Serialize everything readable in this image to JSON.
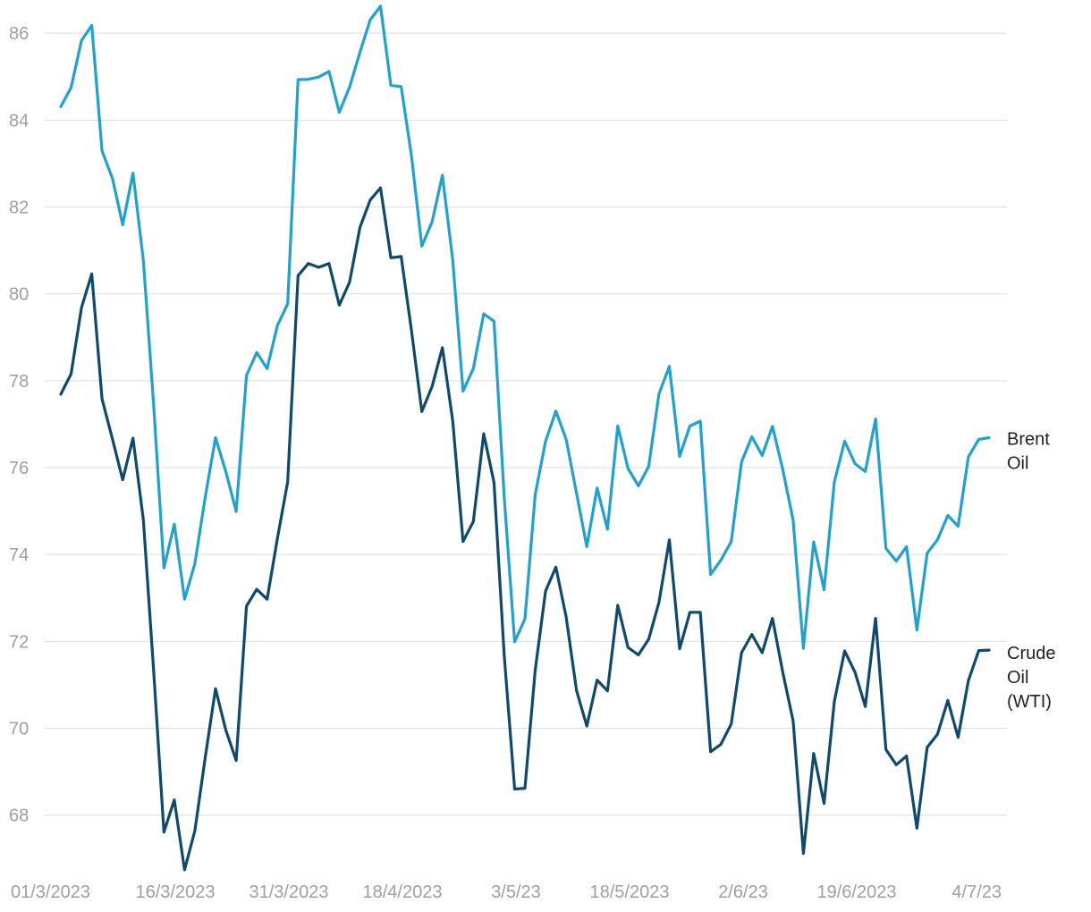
{
  "chart_data": {
    "type": "line",
    "title": "",
    "xlabel": "",
    "ylabel": "",
    "ylim": [
      66.8,
      86.6
    ],
    "y_ticks": [
      68,
      70,
      72,
      74,
      76,
      78,
      80,
      82,
      84,
      86
    ],
    "grid": "horizontal",
    "x_tick_labels": [
      "01/3/2023",
      "16/3/2023",
      "31/3/2023",
      "18/4/2023",
      "3/5/23",
      "18/5/2023",
      "2/6/23",
      "19/6/2023",
      "4/7/23"
    ],
    "series": [
      {
        "name": "Brent Oil",
        "name_lines": [
          "Brent",
          "Oil"
        ],
        "color": "#1fa2cf",
        "values": [
          84.31,
          84.75,
          85.83,
          86.18,
          83.29,
          82.66,
          81.59,
          82.78,
          80.77,
          77.45,
          73.69,
          74.7,
          72.97,
          73.79,
          75.32,
          76.69,
          75.91,
          74.99,
          78.12,
          78.65,
          78.28,
          79.27,
          79.77,
          84.93,
          84.94,
          84.99,
          85.12,
          84.18,
          84.76,
          85.56,
          86.31,
          86.62,
          84.8,
          84.77,
          83.18,
          81.1,
          81.66,
          82.73,
          80.77,
          77.76,
          78.28,
          79.54,
          79.37,
          75.3,
          71.99,
          72.52,
          75.38,
          76.61,
          77.3,
          76.65,
          75.41,
          74.18,
          75.53,
          74.58,
          76.96,
          75.98,
          75.58,
          76.03,
          77.7,
          78.33,
          76.26,
          76.96,
          77.07,
          73.54,
          73.87,
          74.3,
          76.13,
          76.71,
          76.28,
          76.95,
          75.96,
          74.79,
          71.84,
          74.29,
          73.19,
          75.67,
          76.61,
          76.09,
          75.91,
          77.12,
          74.14,
          73.85,
          74.18,
          72.26,
          74.03,
          74.34,
          74.9,
          74.65,
          76.25,
          76.65,
          76.69
        ]
      },
      {
        "name": "Crude Oil (WTI)",
        "name_lines": [
          "Crude",
          "Oil",
          "(WTI)"
        ],
        "color": "#0d4a6e",
        "values": [
          77.69,
          78.16,
          79.68,
          80.46,
          77.58,
          76.66,
          75.72,
          76.68,
          74.8,
          71.33,
          67.61,
          68.35,
          66.74,
          67.64,
          69.33,
          70.91,
          69.96,
          69.26,
          72.81,
          73.2,
          72.97,
          74.37,
          75.67,
          80.42,
          80.7,
          80.61,
          80.7,
          79.74,
          80.27,
          81.53,
          82.16,
          82.44,
          80.83,
          80.86,
          79.16,
          77.29,
          77.87,
          78.76,
          77.07,
          74.3,
          74.76,
          76.78,
          75.66,
          71.66,
          68.6,
          68.62,
          71.34,
          73.16,
          73.71,
          72.56,
          70.87,
          70.05,
          71.11,
          70.86,
          72.83,
          71.86,
          71.69,
          72.05,
          72.9,
          74.34,
          71.83,
          72.67,
          72.67,
          69.46,
          69.63,
          70.1,
          71.74,
          72.16,
          71.74,
          72.53,
          71.29,
          70.17,
          67.12,
          69.42,
          68.27,
          70.62,
          71.78,
          71.29,
          70.5,
          72.53,
          69.51,
          69.16,
          69.36,
          67.7,
          69.56,
          69.86,
          70.64,
          69.79,
          71.1,
          71.79,
          71.8
        ]
      }
    ]
  }
}
